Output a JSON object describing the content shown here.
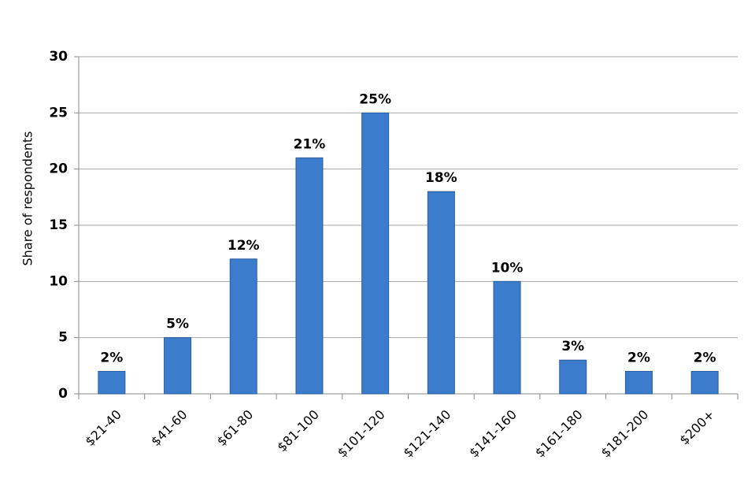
{
  "chart_data": {
    "type": "bar",
    "y_axis_label": "Share of respondents",
    "categories": [
      "$21-40",
      "$41-60",
      "$61-80",
      "$81-100",
      "$101-120",
      "$121-140",
      "$141-160",
      "$161-180",
      "$181-200",
      "$200+"
    ],
    "values": [
      2,
      5,
      12,
      21,
      25,
      18,
      10,
      3,
      2,
      2
    ],
    "value_labels": [
      "2%",
      "5%",
      "12%",
      "21%",
      "25%",
      "18%",
      "10%",
      "3%",
      "2%",
      "2%"
    ],
    "color": "#3c7ccc",
    "ylim": [
      0,
      30
    ],
    "yticks": [
      0,
      5,
      10,
      15,
      20,
      25,
      30
    ],
    "grid": true
  }
}
